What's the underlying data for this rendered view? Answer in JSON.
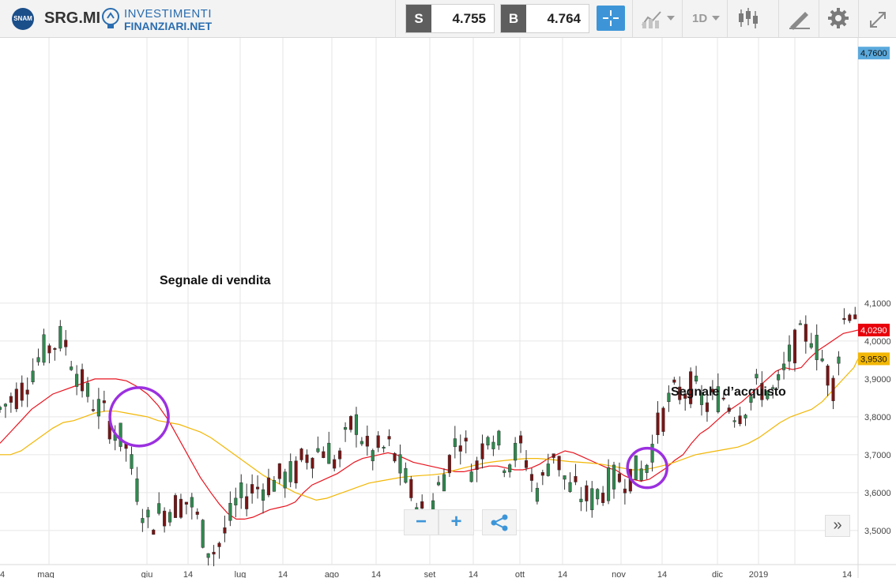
{
  "toolbar": {
    "logo_text": "SNAM",
    "ticker": "SRG.MI",
    "brand_top": "INVESTIMENTI",
    "brand_bottom": "FINANZIARI.NET",
    "sell_tag": "S",
    "sell_price": "4.755",
    "buy_tag": "B",
    "buy_price": "4.764",
    "interval_label": "1D",
    "icons": [
      "crosshair-icon",
      "chart-type-icon",
      "candlestick-icon",
      "draw-pencil-icon",
      "gear-icon",
      "fullscreen-icon"
    ]
  },
  "chart_data": {
    "type": "candlestick",
    "title": "",
    "xlabel": "",
    "ylabel": "",
    "ylim": [
      3.41,
      4.8
    ],
    "y_ticks": [
      "4,1000",
      "4,0000",
      "3,9000",
      "3,8000",
      "3,7000",
      "3,6000",
      "3,5000"
    ],
    "x_ticks": [
      "4",
      "mag",
      "giu",
      "14",
      "lug",
      "14",
      "ago",
      "14",
      "set",
      "14",
      "ott",
      "14",
      "nov",
      "14",
      "dic",
      "2019",
      "14"
    ],
    "price_labels": [
      {
        "text": "4,7600",
        "value": 4.76,
        "color": "#5aa9dd"
      },
      {
        "text": "4,0290",
        "value": 4.029,
        "color": "#e8000b"
      },
      {
        "text": "3,9530",
        "value": 3.953,
        "color": "#f2b705"
      }
    ],
    "moving_averages": [
      {
        "color": "#e8141f",
        "points": [
          [
            0,
            3.73
          ],
          [
            5,
            3.76
          ],
          [
            10,
            3.79
          ],
          [
            15,
            3.82
          ],
          [
            20,
            3.84
          ],
          [
            25,
            3.86
          ],
          [
            30,
            3.87
          ],
          [
            35,
            3.88
          ],
          [
            40,
            3.89
          ],
          [
            45,
            3.9
          ],
          [
            50,
            3.9
          ],
          [
            55,
            3.9
          ],
          [
            60,
            3.895
          ],
          [
            65,
            3.88
          ],
          [
            70,
            3.86
          ],
          [
            75,
            3.83
          ],
          [
            80,
            3.79
          ],
          [
            85,
            3.74
          ],
          [
            90,
            3.69
          ],
          [
            95,
            3.64
          ],
          [
            100,
            3.6
          ],
          [
            104,
            3.57
          ],
          [
            108,
            3.545
          ],
          [
            112,
            3.53
          ],
          [
            116,
            3.53
          ],
          [
            120,
            3.535
          ],
          [
            124,
            3.545
          ],
          [
            128,
            3.555
          ],
          [
            132,
            3.56
          ],
          [
            136,
            3.565
          ],
          [
            140,
            3.575
          ],
          [
            144,
            3.6
          ],
          [
            148,
            3.62
          ],
          [
            152,
            3.63
          ],
          [
            156,
            3.64
          ],
          [
            160,
            3.65
          ],
          [
            164,
            3.665
          ],
          [
            168,
            3.68
          ],
          [
            172,
            3.69
          ],
          [
            176,
            3.695
          ],
          [
            180,
            3.7
          ],
          [
            184,
            3.705
          ],
          [
            188,
            3.7
          ],
          [
            192,
            3.69
          ],
          [
            196,
            3.68
          ],
          [
            200,
            3.675
          ],
          [
            204,
            3.67
          ],
          [
            208,
            3.665
          ],
          [
            212,
            3.66
          ],
          [
            216,
            3.655
          ],
          [
            220,
            3.655
          ],
          [
            224,
            3.66
          ],
          [
            228,
            3.665
          ],
          [
            232,
            3.67
          ],
          [
            236,
            3.67
          ],
          [
            240,
            3.665
          ],
          [
            244,
            3.66
          ],
          [
            248,
            3.66
          ],
          [
            252,
            3.665
          ],
          [
            256,
            3.675
          ],
          [
            260,
            3.69
          ],
          [
            264,
            3.7
          ],
          [
            268,
            3.71
          ],
          [
            272,
            3.705
          ],
          [
            276,
            3.695
          ],
          [
            280,
            3.685
          ],
          [
            284,
            3.675
          ],
          [
            288,
            3.665
          ],
          [
            292,
            3.66
          ],
          [
            296,
            3.645
          ],
          [
            300,
            3.635
          ],
          [
            304,
            3.63
          ],
          [
            308,
            3.635
          ],
          [
            312,
            3.65
          ],
          [
            316,
            3.665
          ],
          [
            320,
            3.685
          ],
          [
            324,
            3.7
          ],
          [
            328,
            3.73
          ],
          [
            332,
            3.755
          ],
          [
            336,
            3.77
          ],
          [
            340,
            3.79
          ],
          [
            344,
            3.81
          ],
          [
            348,
            3.825
          ],
          [
            352,
            3.84
          ],
          [
            356,
            3.86
          ],
          [
            360,
            3.88
          ],
          [
            364,
            3.9
          ],
          [
            368,
            3.92
          ],
          [
            372,
            3.93
          ],
          [
            376,
            3.925
          ],
          [
            380,
            3.93
          ],
          [
            384,
            3.955
          ],
          [
            388,
            3.975
          ],
          [
            392,
            3.99
          ],
          [
            396,
            4.005
          ],
          [
            400,
            4.02
          ],
          [
            404,
            4.025
          ],
          [
            407,
            4.029
          ]
        ]
      },
      {
        "color": "#f2b705",
        "points": [
          [
            0,
            3.7
          ],
          [
            5,
            3.7
          ],
          [
            10,
            3.71
          ],
          [
            15,
            3.73
          ],
          [
            20,
            3.75
          ],
          [
            25,
            3.77
          ],
          [
            30,
            3.785
          ],
          [
            35,
            3.79
          ],
          [
            40,
            3.8
          ],
          [
            45,
            3.81
          ],
          [
            50,
            3.815
          ],
          [
            55,
            3.815
          ],
          [
            60,
            3.81
          ],
          [
            65,
            3.805
          ],
          [
            70,
            3.8
          ],
          [
            75,
            3.79
          ],
          [
            80,
            3.785
          ],
          [
            85,
            3.78
          ],
          [
            90,
            3.77
          ],
          [
            95,
            3.76
          ],
          [
            100,
            3.745
          ],
          [
            105,
            3.725
          ],
          [
            110,
            3.705
          ],
          [
            115,
            3.685
          ],
          [
            120,
            3.665
          ],
          [
            125,
            3.645
          ],
          [
            130,
            3.63
          ],
          [
            135,
            3.615
          ],
          [
            140,
            3.6
          ],
          [
            145,
            3.59
          ],
          [
            150,
            3.58
          ],
          [
            155,
            3.585
          ],
          [
            160,
            3.595
          ],
          [
            165,
            3.605
          ],
          [
            170,
            3.615
          ],
          [
            175,
            3.625
          ],
          [
            180,
            3.63
          ],
          [
            185,
            3.635
          ],
          [
            190,
            3.64
          ],
          [
            195,
            3.643
          ],
          [
            200,
            3.645
          ],
          [
            205,
            3.647
          ],
          [
            210,
            3.65
          ],
          [
            215,
            3.658
          ],
          [
            220,
            3.665
          ],
          [
            225,
            3.672
          ],
          [
            230,
            3.678
          ],
          [
            235,
            3.682
          ],
          [
            240,
            3.685
          ],
          [
            245,
            3.688
          ],
          [
            250,
            3.69
          ],
          [
            255,
            3.69
          ],
          [
            260,
            3.688
          ],
          [
            265,
            3.685
          ],
          [
            270,
            3.682
          ],
          [
            275,
            3.68
          ],
          [
            280,
            3.678
          ],
          [
            285,
            3.675
          ],
          [
            290,
            3.67
          ],
          [
            295,
            3.665
          ],
          [
            300,
            3.66
          ],
          [
            305,
            3.66
          ],
          [
            310,
            3.665
          ],
          [
            315,
            3.672
          ],
          [
            320,
            3.68
          ],
          [
            325,
            3.69
          ],
          [
            330,
            3.7
          ],
          [
            335,
            3.705
          ],
          [
            340,
            3.71
          ],
          [
            345,
            3.715
          ],
          [
            350,
            3.72
          ],
          [
            355,
            3.73
          ],
          [
            360,
            3.745
          ],
          [
            365,
            3.765
          ],
          [
            370,
            3.785
          ],
          [
            375,
            3.8
          ],
          [
            380,
            3.81
          ],
          [
            385,
            3.82
          ],
          [
            390,
            3.84
          ],
          [
            395,
            3.87
          ],
          [
            400,
            3.9
          ],
          [
            405,
            3.93
          ],
          [
            407,
            3.953
          ]
        ]
      }
    ],
    "annotations": [
      {
        "text": "Segnale di vendita",
        "circle_x": 66,
        "circle_y": 3.8,
        "color": "#9b30e0"
      },
      {
        "text": "Segnale d’acquisto",
        "circle_x": 307,
        "circle_y": 3.665,
        "color": "#9b30e0"
      }
    ]
  }
}
